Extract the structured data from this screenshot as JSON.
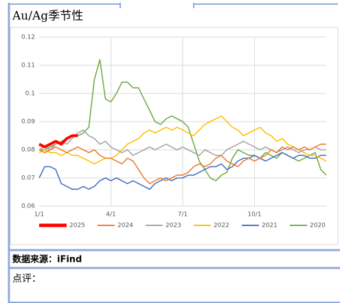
{
  "header": {
    "title": "Au/Ag季节性"
  },
  "chart_data": {
    "type": "line",
    "categories": [
      "1/1",
      null,
      null,
      null,
      null,
      null,
      null,
      null,
      null,
      null,
      null,
      null,
      null,
      "4/1",
      null,
      null,
      null,
      null,
      null,
      null,
      null,
      null,
      null,
      null,
      null,
      null,
      "7/1",
      null,
      null,
      null,
      null,
      null,
      null,
      null,
      null,
      null,
      null,
      null,
      null,
      "10/1",
      null,
      null,
      null,
      null,
      null,
      null,
      null,
      null,
      null,
      null,
      null,
      null,
      null
    ],
    "ylim": [
      0.06,
      0.12
    ],
    "yticks": [
      0.06,
      0.07,
      0.08,
      0.09,
      0.1,
      0.11,
      0.12
    ],
    "grid": true,
    "series": [
      {
        "name": "2025",
        "color": "#ff0000",
        "values": [
          0.082,
          0.081,
          0.082,
          0.083,
          0.082,
          0.084,
          0.085,
          0.085,
          null,
          null,
          null,
          null,
          null,
          null,
          null,
          null,
          null,
          null,
          null,
          null,
          null,
          null,
          null,
          null,
          null,
          null,
          null,
          null,
          null,
          null,
          null,
          null,
          null,
          null,
          null,
          null,
          null,
          null,
          null,
          null,
          null,
          null,
          null,
          null,
          null,
          null,
          null,
          null,
          null,
          null,
          null,
          null,
          null
        ]
      },
      {
        "name": "2024",
        "color": "#ed7d31",
        "values": [
          0.08,
          0.079,
          0.08,
          0.081,
          0.08,
          0.079,
          0.08,
          0.081,
          0.08,
          0.079,
          0.08,
          0.078,
          0.077,
          0.077,
          0.076,
          0.075,
          0.077,
          0.076,
          0.073,
          0.07,
          0.068,
          0.069,
          0.07,
          0.069,
          0.07,
          0.071,
          0.071,
          0.072,
          0.074,
          0.075,
          0.074,
          0.075,
          0.077,
          0.078,
          0.076,
          0.075,
          0.074,
          0.076,
          0.077,
          0.076,
          0.077,
          0.078,
          0.08,
          0.079,
          0.081,
          0.08,
          0.081,
          0.08,
          0.081,
          0.08,
          0.081,
          0.082,
          0.082
        ]
      },
      {
        "name": "2023",
        "color": "#a5a5a5",
        "values": [
          0.08,
          0.081,
          0.08,
          0.082,
          0.083,
          0.082,
          0.084,
          0.086,
          0.087,
          0.085,
          0.084,
          0.082,
          0.083,
          0.081,
          0.08,
          0.079,
          0.08,
          0.078,
          0.079,
          0.08,
          0.081,
          0.08,
          0.081,
          0.082,
          0.081,
          0.08,
          0.081,
          0.08,
          0.079,
          0.078,
          0.08,
          0.079,
          0.078,
          0.078,
          0.08,
          0.081,
          0.082,
          0.083,
          0.082,
          0.081,
          0.08,
          0.081,
          0.08,
          0.079,
          0.08,
          0.081,
          0.08,
          0.079,
          0.08,
          0.08,
          0.081,
          0.08,
          0.08
        ]
      },
      {
        "name": "2022",
        "color": "#ffc000",
        "values": [
          0.079,
          0.08,
          0.079,
          0.079,
          0.078,
          0.079,
          0.078,
          0.078,
          0.077,
          0.076,
          0.075,
          0.076,
          0.077,
          0.077,
          0.078,
          0.08,
          0.082,
          0.083,
          0.084,
          0.086,
          0.087,
          0.086,
          0.087,
          0.088,
          0.087,
          0.088,
          0.087,
          0.086,
          0.085,
          0.087,
          0.089,
          0.09,
          0.091,
          0.092,
          0.09,
          0.088,
          0.087,
          0.085,
          0.086,
          0.087,
          0.088,
          0.086,
          0.085,
          0.083,
          0.084,
          0.082,
          0.081,
          0.08,
          0.079,
          0.078,
          0.078,
          0.077,
          0.076
        ]
      },
      {
        "name": "2021",
        "color": "#4472c4",
        "values": [
          0.07,
          0.074,
          0.074,
          0.073,
          0.068,
          0.067,
          0.066,
          0.066,
          0.067,
          0.066,
          0.067,
          0.069,
          0.07,
          0.069,
          0.07,
          0.069,
          0.068,
          0.069,
          0.068,
          0.067,
          0.066,
          0.068,
          0.069,
          0.07,
          0.069,
          0.07,
          0.07,
          0.071,
          0.071,
          0.072,
          0.073,
          0.074,
          0.074,
          0.075,
          0.073,
          0.074,
          0.076,
          0.077,
          0.077,
          0.078,
          0.077,
          0.076,
          0.077,
          0.078,
          0.079,
          0.078,
          0.077,
          0.078,
          0.078,
          0.077,
          0.077,
          0.078,
          0.078
        ]
      },
      {
        "name": "2020",
        "color": "#70ad47",
        "values": [
          0.08,
          0.08,
          0.081,
          0.082,
          0.083,
          0.084,
          0.085,
          0.085,
          0.086,
          0.088,
          0.105,
          0.112,
          0.098,
          0.097,
          0.1,
          0.104,
          0.104,
          0.102,
          0.102,
          0.098,
          0.094,
          0.09,
          0.089,
          0.091,
          0.092,
          0.091,
          0.09,
          0.088,
          0.082,
          0.076,
          0.073,
          0.07,
          0.069,
          0.071,
          0.072,
          0.077,
          0.08,
          0.079,
          0.078,
          0.078,
          0.077,
          0.079,
          0.078,
          0.077,
          0.079,
          0.078,
          0.077,
          0.076,
          0.077,
          0.078,
          0.079,
          0.073,
          0.071
        ]
      }
    ]
  },
  "source": "数据来源：iFind",
  "comment": "点评："
}
